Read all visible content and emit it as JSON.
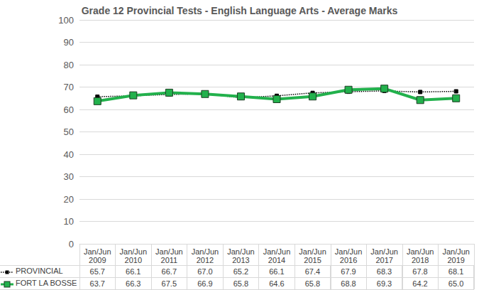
{
  "chart_data": {
    "type": "line",
    "title": "Grade 12 Provincial Tests - English Language Arts - Average Marks",
    "categories": [
      "Jan/Jun\n2009",
      "Jan/Jun\n2010",
      "Jan/Jun\n2011",
      "Jan/Jun\n2012",
      "Jan/Jun\n2013",
      "Jan/Jun\n2014",
      "Jan/Jun\n2015",
      "Jan/Jun\n2016",
      "Jan/Jun\n2017",
      "Jan/Jun\n2018",
      "Jan/Jun\n2019"
    ],
    "series": [
      {
        "name": "PROVINCIAL",
        "color": "#000000",
        "marker": "square",
        "line_style": "dotted",
        "values": [
          65.7,
          66.1,
          66.7,
          67.0,
          65.2,
          66.1,
          67.4,
          67.9,
          68.3,
          67.8,
          68.1
        ],
        "value_labels": [
          "65.7",
          "66.1",
          "66.7",
          "67.0",
          "65.2",
          "66.1",
          "67.4",
          "67.9",
          "68.3",
          "67.8",
          "68.1"
        ]
      },
      {
        "name": "FORT LA BOSSE",
        "color": "#22b14c",
        "marker": "square",
        "line_style": "solid",
        "values": [
          63.7,
          66.3,
          67.5,
          66.9,
          65.8,
          64.6,
          65.8,
          68.8,
          69.3,
          64.2,
          65.0
        ],
        "value_labels": [
          "63.7",
          "66.3",
          "67.5",
          "66.9",
          "65.8",
          "64.6",
          "65.8",
          "68.8",
          "69.3",
          "64.2",
          "65.0"
        ]
      }
    ],
    "ylim": [
      0,
      100
    ],
    "yticks": [
      0,
      10,
      20,
      30,
      40,
      50,
      60,
      70,
      80,
      90,
      100
    ],
    "grid": true
  }
}
